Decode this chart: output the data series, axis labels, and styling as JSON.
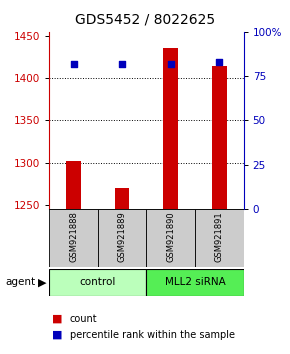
{
  "title": "GDS5452 / 8022625",
  "samples": [
    "GSM921888",
    "GSM921889",
    "GSM921890",
    "GSM921891"
  ],
  "counts": [
    1302,
    1270,
    1436,
    1415
  ],
  "percentiles": [
    82,
    82,
    82,
    83
  ],
  "ylim_left": [
    1245,
    1455
  ],
  "ylim_right": [
    0,
    100
  ],
  "yticks_left": [
    1250,
    1300,
    1350,
    1400,
    1450
  ],
  "yticks_right": [
    0,
    25,
    50,
    75,
    100
  ],
  "ytick_labels_right": [
    "0",
    "25",
    "50",
    "75",
    "100%"
  ],
  "bar_color": "#cc0000",
  "dot_color": "#0000bb",
  "bar_width": 0.3,
  "groups": [
    {
      "label": "control",
      "cols": [
        0,
        1
      ],
      "color": "#bbffbb"
    },
    {
      "label": "MLL2 siRNA",
      "cols": [
        2,
        3
      ],
      "color": "#55ee55"
    }
  ],
  "agent_label": "agent",
  "legend_count_label": "count",
  "legend_pct_label": "percentile rank within the sample",
  "sample_box_color": "#cccccc",
  "title_fontsize": 10,
  "tick_fontsize": 7.5,
  "dot_size": 22
}
